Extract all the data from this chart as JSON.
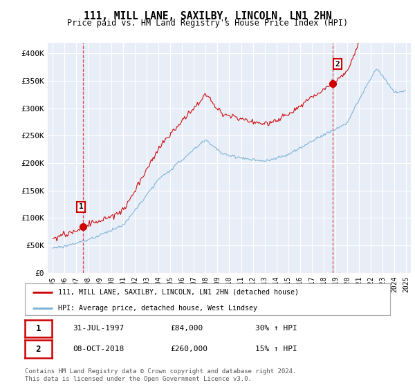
{
  "title": "111, MILL LANE, SAXILBY, LINCOLN, LN1 2HN",
  "subtitle": "Price paid vs. HM Land Registry's House Price Index (HPI)",
  "legend_line1": "111, MILL LANE, SAXILBY, LINCOLN, LN1 2HN (detached house)",
  "legend_line2": "HPI: Average price, detached house, West Lindsey",
  "transaction1_date": "31-JUL-1997",
  "transaction1_price": "£84,000",
  "transaction1_hpi": "30% ↑ HPI",
  "transaction2_date": "08-OCT-2018",
  "transaction2_price": "£260,000",
  "transaction2_hpi": "15% ↑ HPI",
  "footer": "Contains HM Land Registry data © Crown copyright and database right 2024.\nThis data is licensed under the Open Government Licence v3.0.",
  "red_color": "#cc0000",
  "blue_color": "#7ab0d4",
  "plot_bg_color": "#e8eef8",
  "ylim": [
    0,
    420000
  ],
  "yticks": [
    0,
    50000,
    100000,
    150000,
    200000,
    250000,
    300000,
    350000,
    400000
  ],
  "ytick_labels": [
    "£0",
    "£50K",
    "£100K",
    "£150K",
    "£200K",
    "£250K",
    "£300K",
    "£350K",
    "£400K"
  ],
  "t1_year": 1997.58,
  "t2_year": 2018.79,
  "t1_price": 84000,
  "t2_price": 260000
}
